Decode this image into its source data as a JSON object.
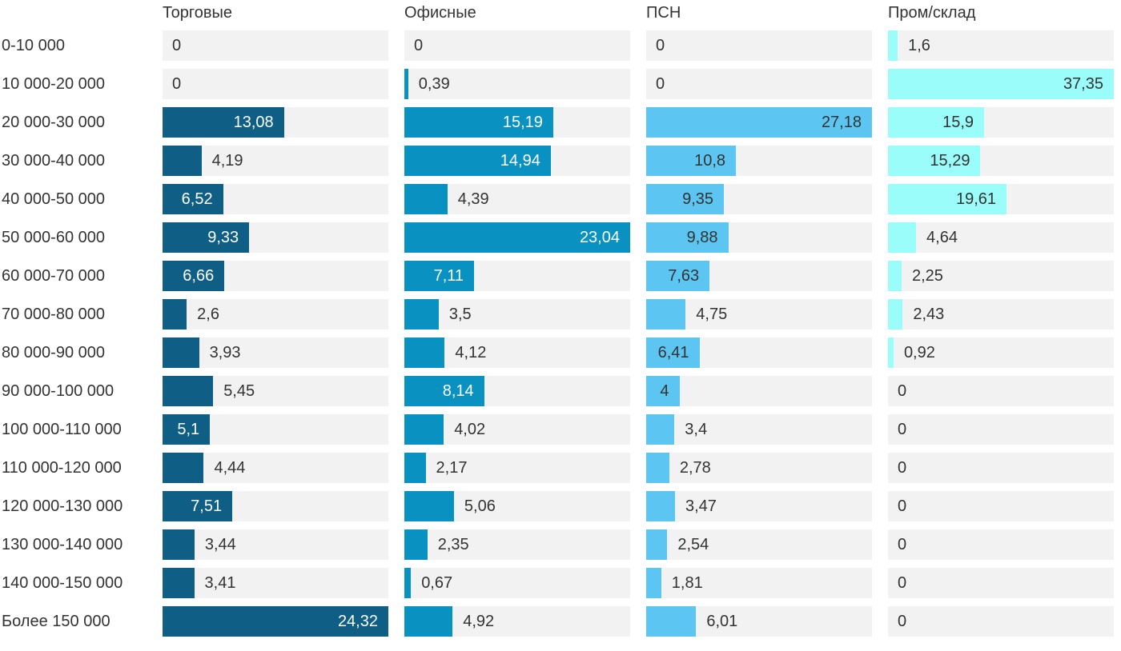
{
  "chart_data": {
    "type": "bar",
    "orientation": "horizontal",
    "decimal_separator": ",",
    "categories": [
      "0-10 000",
      "10 000-20 000",
      "20 000-30 000",
      "30 000-40 000",
      "40 000-50 000",
      "50 000-60 000",
      "60 000-70 000",
      "70 000-80 000",
      "80 000-90 000",
      "90 000-100 000",
      "100 000-110 000",
      "110 000-120 000",
      "120 000-130 000",
      "130 000-140 000",
      "140 000-150 000",
      "Более 150 000"
    ],
    "series": [
      {
        "name": "Торговые",
        "color": "#0E5E85",
        "inside_label_color": "#FFFFFF",
        "values": [
          "0",
          "0",
          "13,08",
          "4,19",
          "6,52",
          "9,33",
          "6,66",
          "2,6",
          "3,93",
          "5,45",
          "5,1",
          "4,44",
          "7,51",
          "3,44",
          "3,41",
          "24,32"
        ]
      },
      {
        "name": "Офисные",
        "color": "#0992C1",
        "inside_label_color": "#FFFFFF",
        "values": [
          "0",
          "0,39",
          "15,19",
          "14,94",
          "4,39",
          "23,04",
          "7,11",
          "3,5",
          "4,12",
          "8,14",
          "4,02",
          "2,17",
          "5,06",
          "2,35",
          "0,67",
          "4,92"
        ]
      },
      {
        "name": "ПСН",
        "color": "#5CC5F1",
        "inside_label_color": "#333333",
        "values": [
          "0",
          "0",
          "27,18",
          "10,8",
          "9,35",
          "9,88",
          "7,63",
          "4,75",
          "6,41",
          "4",
          "3,4",
          "2,78",
          "3,47",
          "2,54",
          "1,81",
          "6,01"
        ]
      },
      {
        "name": "Пром/склад",
        "color": "#9AFDF9",
        "inside_label_color": "#333333",
        "values": [
          "1,6",
          "37,35",
          "15,9",
          "15,29",
          "19,61",
          "4,64",
          "2,25",
          "2,43",
          "0,92",
          "0",
          "0",
          "0",
          "0",
          "0",
          "0",
          "0"
        ]
      }
    ],
    "layout": {
      "scale": "each series scaled to its own max value = full track width",
      "track_color": "#F2F2F2",
      "text_color": "#333333",
      "grid": "off",
      "legend": "column headers above each bar column"
    }
  }
}
